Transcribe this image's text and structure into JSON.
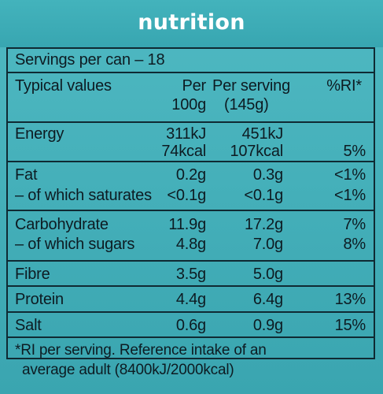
{
  "title": "nutrition",
  "servings": "Servings per can – 18",
  "header": {
    "label": "Typical values",
    "per100_line1": "Per",
    "per100_line2": "100g",
    "perserv_line1": "Per serving",
    "perserv_line2": "(145g)",
    "ri": "%RI*"
  },
  "rows": {
    "energy": {
      "label": "Energy",
      "per100_kj": "311kJ",
      "per100_kcal": "74kcal",
      "serv_kj": "451kJ",
      "serv_kcal": "107kcal",
      "ri": "5%"
    },
    "fat": {
      "label": "Fat",
      "per100": "0.2g",
      "serv": "0.3g",
      "ri": "<1%"
    },
    "saturates": {
      "label": "– of which saturates",
      "per100": "<0.1g",
      "serv": "<0.1g",
      "ri": "<1%"
    },
    "carbohydrate": {
      "label": "Carbohydrate",
      "per100": "11.9g",
      "serv": "17.2g",
      "ri": "7%"
    },
    "sugars": {
      "label": "– of which sugars",
      "per100": "4.8g",
      "serv": "7.0g",
      "ri": "8%"
    },
    "fibre": {
      "label": "Fibre",
      "per100": "3.5g",
      "serv": "5.0g"
    },
    "protein": {
      "label": "Protein",
      "per100": "4.4g",
      "serv": "6.4g",
      "ri": "13%"
    },
    "salt": {
      "label": "Salt",
      "per100": "0.6g",
      "serv": "0.9g",
      "ri": "15%"
    }
  },
  "footnote_line1": "*RI per serving. Reference intake of an",
  "footnote_line2": "average adult (8400kJ/2000kcal)"
}
